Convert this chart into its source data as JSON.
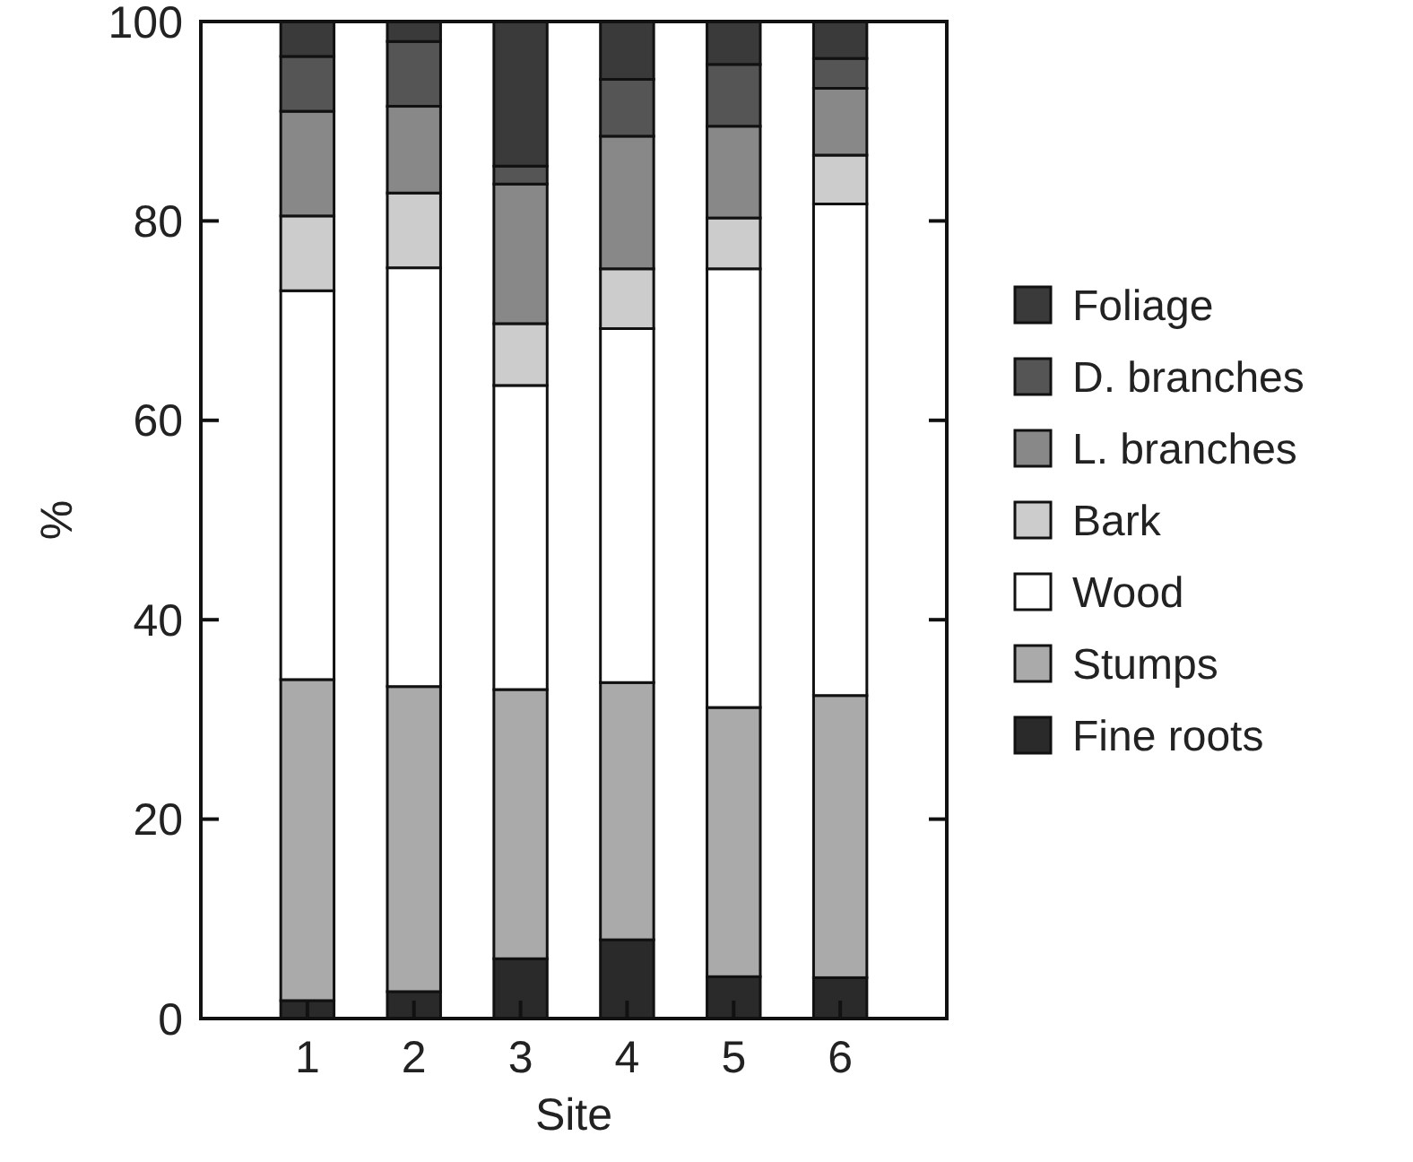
{
  "chart_data": {
    "type": "bar",
    "stacked": true,
    "xlabel": "Site",
    "ylabel": "%",
    "categories": [
      "1",
      "2",
      "3",
      "4",
      "5",
      "6"
    ],
    "series": [
      {
        "name": "Fine roots",
        "color": "#2a2a2a",
        "values": [
          1.8,
          2.7,
          6,
          7.9,
          4.2,
          4.1
        ]
      },
      {
        "name": "Stumps",
        "color": "#aaaaaa",
        "values": [
          32.2,
          30.6,
          27,
          25.8,
          27,
          28.3
        ]
      },
      {
        "name": "Wood",
        "color": "#ffffff",
        "values": [
          39,
          42,
          30.5,
          35.5,
          44,
          49.3
        ]
      },
      {
        "name": "Bark",
        "color": "#cccccc",
        "values": [
          7.5,
          7.5,
          6.2,
          6,
          5.1,
          4.9
        ]
      },
      {
        "name": "L. branches",
        "color": "#888888",
        "values": [
          10.5,
          8.7,
          14,
          13.3,
          9.2,
          6.7
        ]
      },
      {
        "name": "D. branches",
        "color": "#555555",
        "values": [
          5.5,
          6.5,
          1.8,
          5.7,
          6.2,
          3
        ]
      },
      {
        "name": "Foliage",
        "color": "#3a3a3a",
        "values": [
          3.5,
          2,
          14.5,
          5.8,
          4.3,
          3.7
        ]
      }
    ],
    "ylim": [
      0,
      100
    ],
    "yticks": [
      0,
      20,
      40,
      60,
      80,
      100
    ],
    "legend": "right"
  }
}
